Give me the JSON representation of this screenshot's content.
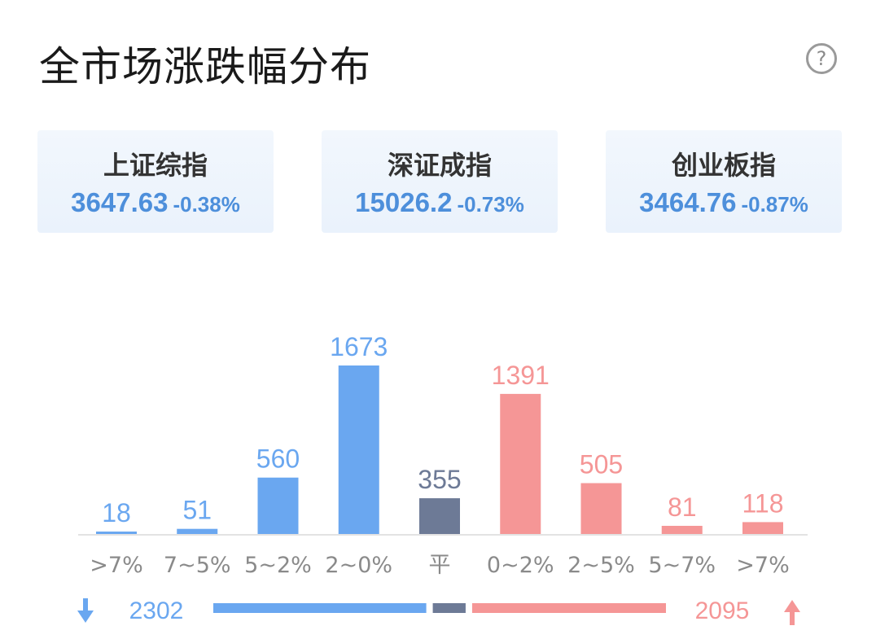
{
  "header": {
    "title": "全市场涨跌幅分布",
    "help_icon": "?"
  },
  "indices": [
    {
      "name": "上证综指",
      "value": "3647.63",
      "change": "-0.38%"
    },
    {
      "name": "深证成指",
      "value": "15026.2",
      "change": "-0.73%"
    },
    {
      "name": "创业板指",
      "value": "3464.76",
      "change": "-0.87%"
    }
  ],
  "colors": {
    "down": "#6aa7f0",
    "flat": "#6d7a96",
    "up": "#f59696",
    "index_text": "#4d8fdb"
  },
  "chart_data": {
    "type": "bar",
    "categories": [
      ">7%",
      "7~5%",
      "5~2%",
      "2~0%",
      "平",
      "0~2%",
      "2~5%",
      "5~7%",
      ">7%"
    ],
    "values": [
      18,
      51,
      560,
      1673,
      355,
      1391,
      505,
      81,
      118
    ],
    "groups": [
      "down",
      "down",
      "down",
      "down",
      "flat",
      "up",
      "up",
      "up",
      "up"
    ],
    "ylim": [
      0,
      1673
    ],
    "grid": false
  },
  "summary": {
    "down_total": "2302",
    "flat_total": 355,
    "up_total": "2095",
    "down_icon": "arrow-down-icon",
    "up_icon": "arrow-up-icon"
  }
}
